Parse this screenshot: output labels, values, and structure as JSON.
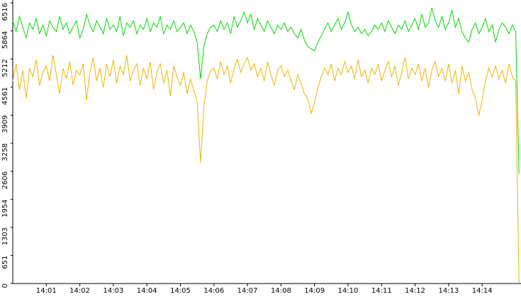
{
  "chart_data": {
    "type": "line",
    "categories": [
      null,
      null,
      null,
      null,
      null,
      null,
      null,
      null,
      null,
      null,
      "14:01",
      null,
      null,
      null,
      null,
      null,
      null,
      null,
      null,
      null,
      "14:02",
      null,
      null,
      null,
      null,
      null,
      null,
      null,
      null,
      null,
      "14:03",
      null,
      null,
      null,
      null,
      null,
      null,
      null,
      null,
      null,
      "14:04",
      null,
      null,
      null,
      null,
      null,
      null,
      null,
      null,
      null,
      "14:05",
      null,
      null,
      null,
      null,
      null,
      null,
      null,
      null,
      null,
      "14:06",
      null,
      null,
      null,
      null,
      null,
      null,
      null,
      null,
      null,
      "14:07",
      null,
      null,
      null,
      null,
      null,
      null,
      null,
      null,
      null,
      "14:08",
      null,
      null,
      null,
      null,
      null,
      null,
      null,
      null,
      null,
      "14:09",
      null,
      null,
      null,
      null,
      null,
      null,
      null,
      null,
      null,
      "14:10",
      null,
      null,
      null,
      null,
      null,
      null,
      null,
      null,
      null,
      "14:11",
      null,
      null,
      null,
      null,
      null,
      null,
      null,
      null,
      null,
      "14:12",
      null,
      null,
      null,
      null,
      null,
      null,
      null,
      null,
      null,
      "14:13",
      null,
      null,
      null,
      null,
      null,
      null,
      null,
      null,
      null,
      "14:14",
      null,
      null,
      null,
      null,
      null,
      null,
      null,
      null,
      null,
      null,
      null
    ],
    "series": [
      {
        "color": "#00dd00",
        "values": [
          6100,
          5850,
          6200,
          5950,
          5700,
          6050,
          5900,
          6150,
          5800,
          6000,
          5750,
          6100,
          5950,
          5850,
          6200,
          5900,
          6050,
          5800,
          5950,
          6100,
          5700,
          5900,
          6250,
          6000,
          5850,
          6100,
          5950,
          5800,
          6150,
          5900,
          6000,
          5850,
          6200,
          5750,
          6050,
          5950,
          6100,
          5800,
          6000,
          5900,
          6150,
          5850,
          6050,
          5950,
          6200,
          5800,
          6000,
          5900,
          6100,
          5850,
          5950,
          6050,
          5800,
          6000,
          5850,
          5600,
          4750,
          5500,
          5800,
          5950,
          6000,
          5850,
          6100,
          5900,
          6050,
          5800,
          6200,
          5950,
          6100,
          6300,
          6050,
          6250,
          5900,
          6150,
          6000,
          5850,
          6100,
          5950,
          5800,
          6000,
          5900,
          6050,
          5850,
          5950,
          5800,
          5700,
          5900,
          5650,
          5500,
          5450,
          5400,
          5600,
          5750,
          5900,
          6050,
          5850,
          6000,
          6150,
          5900,
          6050,
          6300,
          6000,
          5850,
          5950,
          5800,
          5900,
          5750,
          5850,
          6000,
          5900,
          6050,
          5850,
          6100,
          5950,
          5800,
          6000,
          5900,
          6100,
          5850,
          6000,
          6150,
          5900,
          6250,
          5950,
          6050,
          6400,
          6100,
          5950,
          6200,
          5900,
          6050,
          6350,
          5950,
          6150,
          5850,
          5700,
          5600,
          5900,
          6050,
          5800,
          5950,
          6150,
          5850,
          6000,
          5600,
          5900,
          6050,
          5950,
          5800,
          6000,
          5850,
          2550
        ]
      },
      {
        "color": "#f0b400",
        "values": [
          4700,
          5100,
          4500,
          4950,
          4300,
          5000,
          4800,
          5200,
          4600,
          4900,
          5050,
          4700,
          5300,
          4850,
          4400,
          5000,
          4750,
          5150,
          4600,
          4950,
          4850,
          5100,
          4250,
          4900,
          5250,
          4700,
          5000,
          4550,
          5100,
          4800,
          5200,
          4650,
          5050,
          4850,
          5300,
          4700,
          4950,
          5100,
          4600,
          5000,
          4750,
          5150,
          4500,
          4900,
          5100,
          4650,
          4950,
          4350,
          5050,
          4800,
          4600,
          4900,
          4400,
          4750,
          4500,
          4200,
          2800,
          4100,
          4700,
          4950,
          5000,
          4750,
          5150,
          4850,
          5050,
          4650,
          5000,
          5200,
          4900,
          5100,
          5250,
          4950,
          5100,
          4800,
          5000,
          4700,
          5150,
          4850,
          4600,
          4950,
          5050,
          4800,
          4950,
          4700,
          4500,
          4850,
          4650,
          4400,
          4300,
          3950,
          4200,
          4550,
          4800,
          5000,
          4850,
          5100,
          4700,
          5000,
          4850,
          5150,
          4900,
          5050,
          4750,
          5200,
          4800,
          4950,
          4650,
          5000,
          4850,
          5100,
          4700,
          4950,
          5150,
          4800,
          5050,
          4600,
          4900,
          5250,
          4750,
          5000,
          4850,
          5100,
          4700,
          5000,
          4550,
          4950,
          5150,
          4800,
          5000,
          4700,
          5100,
          4650,
          4950,
          4400,
          5050,
          4700,
          4900,
          4500,
          4300,
          3900,
          4250,
          4700,
          5000,
          4800,
          5050,
          4750,
          4950,
          4650,
          5100,
          4800,
          4700,
          0
        ]
      }
    ],
    "ylim": [
      0,
      6516
    ],
    "yticks": [
      0,
      651,
      1303,
      1954,
      2606,
      3258,
      3909,
      4561,
      5212,
      5864,
      6516
    ]
  }
}
